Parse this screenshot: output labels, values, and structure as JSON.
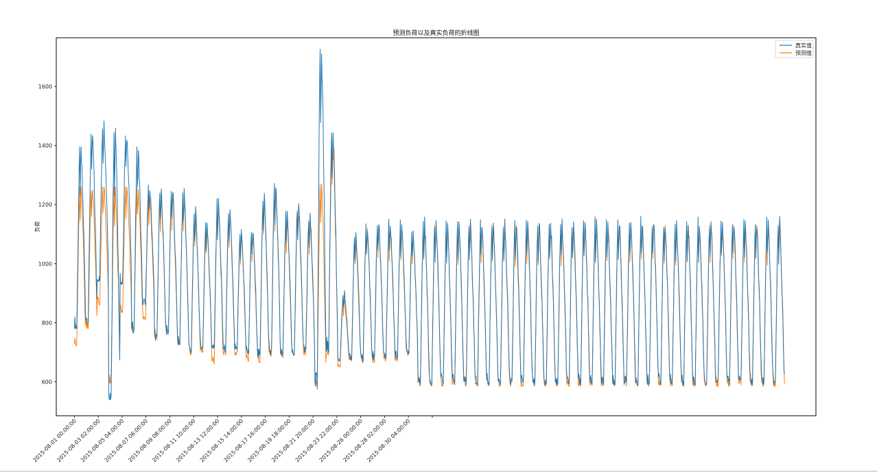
{
  "chart_data": {
    "type": "line",
    "title": "预测负荷以及真实负荷的折线图",
    "xlabel": "",
    "ylabel": "负荷",
    "ylim": [
      485,
      1765
    ],
    "y_ticks": [
      600,
      800,
      1000,
      1200,
      1400,
      1600
    ],
    "x_range": [
      "2015-07-30 10:00:00",
      "2015-10-04 18:00:00"
    ],
    "x_start": "2015-08-01 00:00:00",
    "x_end": "2015-10-02 00:00:00",
    "x_ticks": [
      "2015-08-01 00:00:00",
      "2015-08-03 02:00:00",
      "2015-08-05 04:00:00",
      "2015-08-07 06:00:00",
      "2015-08-09 08:00:00",
      "2015-08-11 10:00:00",
      "2015-08-13 12:00:00",
      "2015-08-15 14:00:00",
      "2015-08-17 16:00:00",
      "2015-08-19 18:00:00",
      "2015-08-21 20:00:00",
      "2015-08-23 22:00:00",
      "2015-08-26 00:00:00",
      "2015-08-28 02:00:00",
      "2015-08-30 04:00:00"
    ],
    "legend_position": "top-right",
    "grid": false,
    "series": [
      {
        "name": "真实值",
        "color": "#1f77b4",
        "daily_peaks": [
          1380,
          1435,
          1470,
          1460,
          1430,
          1380,
          1255,
          1245,
          1250,
          1240,
          1175,
          1140,
          1205,
          1175,
          1110,
          1110,
          1225,
          1265,
          1165,
          1195,
          1155,
          1735,
          1470,
          900,
          1095,
          1120,
          1140,
          1135,
          1135,
          1100,
          1140
        ],
        "daily_troughs": [
          780,
          800,
          940,
          540,
          930,
          765,
          860,
          740,
          760,
          725,
          700,
          710,
          705,
          700,
          700,
          695,
          680,
          690,
          690,
          690,
          700,
          575,
          700,
          670,
          675,
          670,
          675,
          680,
          680,
          690,
          590
        ]
      },
      {
        "name": "预测值",
        "color": "#ff7f0e",
        "daily_peaks": [
          1260,
          1260,
          1260,
          1260,
          1260,
          1260,
          1230,
          1225,
          1235,
          1220,
          1165,
          1120,
          1195,
          1165,
          1100,
          1100,
          1210,
          1255,
          1150,
          1180,
          1140,
          1270,
          1420,
          880,
          1080,
          1120,
          1135,
          1120,
          1120,
          1085,
          1130
        ],
        "daily_troughs": [
          720,
          780,
          860,
          595,
          835,
          770,
          810,
          745,
          755,
          725,
          690,
          700,
          660,
          690,
          690,
          670,
          665,
          685,
          680,
          690,
          690,
          580,
          690,
          650,
          670,
          665,
          665,
          670,
          670,
          680,
          585
        ]
      }
    ]
  }
}
